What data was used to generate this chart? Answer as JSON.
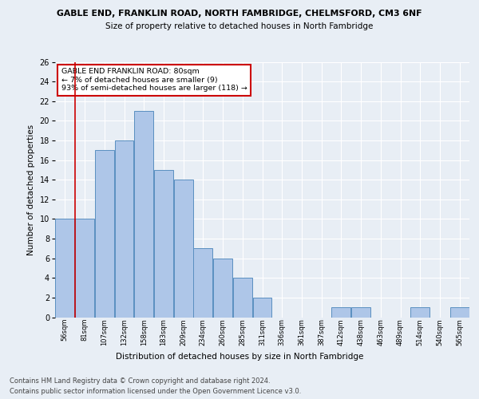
{
  "title_line1": "GABLE END, FRANKLIN ROAD, NORTH FAMBRIDGE, CHELMSFORD, CM3 6NF",
  "title_line2": "Size of property relative to detached houses in North Fambridge",
  "xlabel": "Distribution of detached houses by size in North Fambridge",
  "ylabel": "Number of detached properties",
  "categories": [
    "56sqm",
    "81sqm",
    "107sqm",
    "132sqm",
    "158sqm",
    "183sqm",
    "209sqm",
    "234sqm",
    "260sqm",
    "285sqm",
    "311sqm",
    "336sqm",
    "361sqm",
    "387sqm",
    "412sqm",
    "438sqm",
    "463sqm",
    "489sqm",
    "514sqm",
    "540sqm",
    "565sqm"
  ],
  "values": [
    10,
    10,
    17,
    18,
    21,
    15,
    14,
    7,
    6,
    4,
    2,
    0,
    0,
    0,
    1,
    1,
    0,
    0,
    1,
    0,
    1
  ],
  "bar_color": "#aec6e8",
  "bar_edge_color": "#5a8fc0",
  "ylim": [
    0,
    26
  ],
  "yticks": [
    0,
    2,
    4,
    6,
    8,
    10,
    12,
    14,
    16,
    18,
    20,
    22,
    24,
    26
  ],
  "vline_x_idx": 1,
  "vline_color": "#cc0000",
  "annotation_text": "GABLE END FRANKLIN ROAD: 80sqm\n← 7% of detached houses are smaller (9)\n93% of semi-detached houses are larger (118) →",
  "annotation_box_color": "#ffffff",
  "annotation_box_edgecolor": "#cc0000",
  "footer_line1": "Contains HM Land Registry data © Crown copyright and database right 2024.",
  "footer_line2": "Contains public sector information licensed under the Open Government Licence v3.0.",
  "bg_color": "#e8eef5",
  "plot_bg_color": "#e8eef5",
  "grid_color": "#ffffff"
}
